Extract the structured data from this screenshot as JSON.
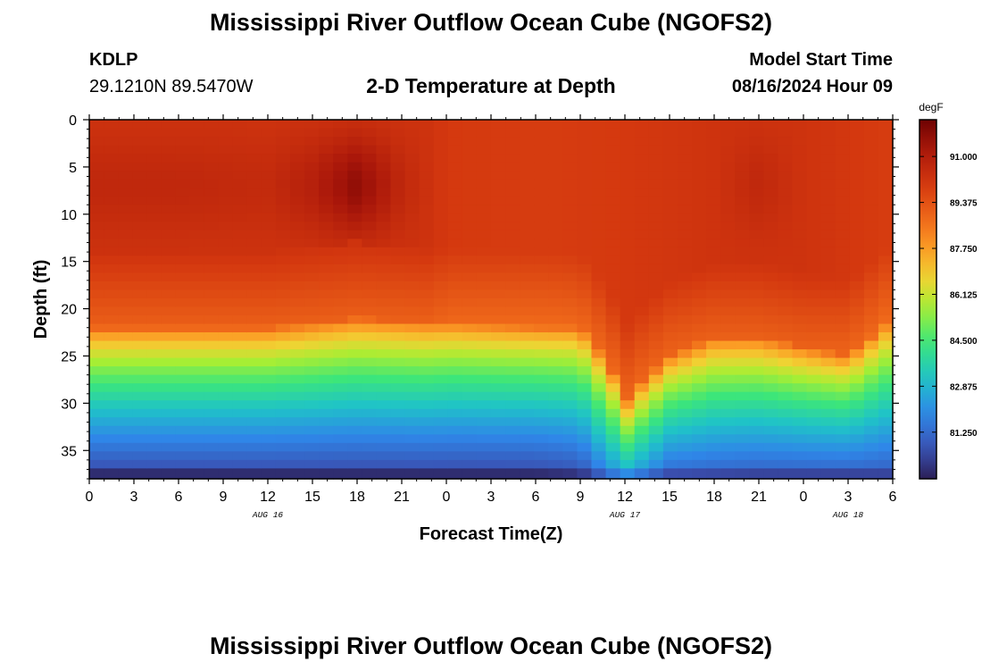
{
  "header": {
    "title": "Mississippi River Outflow Ocean Cube (NGOFS2)",
    "station_id": "KDLP",
    "station_coords": "29.1210N  89.5470W",
    "subtitle": "2-D Temperature at Depth",
    "model_start_label": "Model Start Time",
    "model_start_value": "08/16/2024 Hour 09"
  },
  "footer": {
    "title": "Mississippi River Outflow Ocean Cube (NGOFS2)"
  },
  "chart_data": {
    "type": "heatmap",
    "xlabel": "Forecast Time(Z)",
    "ylabel": "Depth (ft)",
    "x_tick_labels": [
      "0",
      "3",
      "6",
      "9",
      "12",
      "15",
      "18",
      "21",
      "0",
      "3",
      "6",
      "9",
      "12",
      "15",
      "18",
      "21",
      "0",
      "3",
      "6"
    ],
    "x_range_hours": [
      0,
      54
    ],
    "date_labels": [
      {
        "label": "AUG 16",
        "hour": 12
      },
      {
        "label": "AUG 17",
        "hour": 36
      },
      {
        "label": "AUG 18",
        "hour": 51
      }
    ],
    "y_ticks": [
      0,
      5,
      10,
      15,
      20,
      25,
      30,
      35
    ],
    "ylim": [
      0,
      38
    ],
    "y_inverted": true,
    "colorbar": {
      "unit": "degF",
      "tick_labels": [
        "91.000",
        "89.375",
        "87.750",
        "86.125",
        "84.500",
        "82.875",
        "81.250"
      ],
      "range": [
        79.6,
        92.3
      ]
    },
    "surface_temperature": {
      "hours": [
        0,
        6,
        12,
        15,
        18,
        21,
        24,
        30,
        36,
        42,
        45,
        48,
        54
      ],
      "values": [
        90.6,
        90.6,
        90.5,
        90.9,
        91.7,
        90.6,
        90.0,
        89.9,
        90.0,
        90.2,
        90.6,
        90.2,
        89.9
      ]
    },
    "mixed_layer_depth_ft": {
      "hours": [
        0,
        6,
        12,
        18,
        24,
        30,
        33,
        35,
        36,
        37,
        39,
        42,
        45,
        48,
        51,
        54
      ],
      "values": [
        22,
        22,
        22,
        21,
        21.5,
        22,
        22,
        26,
        30,
        28,
        25,
        23,
        23,
        24,
        25,
        21
      ]
    },
    "bottom_temperature": {
      "hours": [
        0,
        30,
        33,
        36,
        39,
        45,
        54
      ],
      "values": [
        80.3,
        80.3,
        80.5,
        82.5,
        81.0,
        80.8,
        80.8
      ]
    }
  }
}
